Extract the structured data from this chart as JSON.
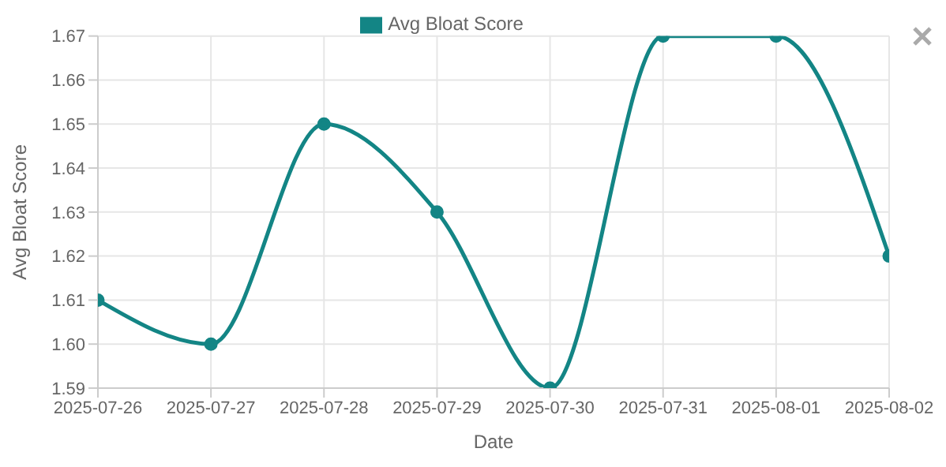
{
  "chart_data": {
    "type": "line",
    "xlabel": "Date",
    "ylabel": "Avg Bloat Score",
    "categories": [
      "2025-07-26",
      "2025-07-27",
      "2025-07-28",
      "2025-07-29",
      "2025-07-30",
      "2025-07-31",
      "2025-08-01",
      "2025-08-02"
    ],
    "series": [
      {
        "name": "Avg Bloat Score",
        "color": "#138585",
        "values": [
          1.61,
          1.6,
          1.65,
          1.63,
          1.59,
          1.67,
          1.67,
          1.62
        ]
      }
    ],
    "ylim": [
      1.59,
      1.67
    ],
    "yticks": [
      1.59,
      {
        "value": 1.6,
        "label": "1.60"
      },
      1.61,
      1.62,
      1.63,
      1.64,
      1.65,
      1.66,
      1.67
    ],
    "grid": true,
    "legend": "top",
    "marker": "circle",
    "line_style": "solid"
  }
}
